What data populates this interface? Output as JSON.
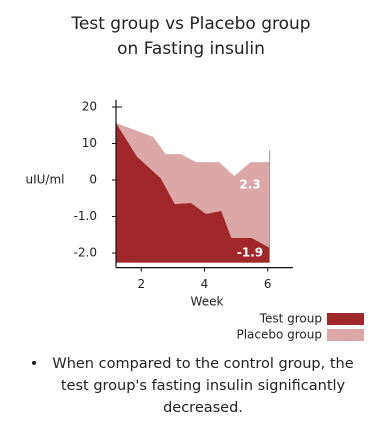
{
  "chart_data": {
    "type": "area",
    "title": [
      "Test group vs Placebo group",
      "on Fasting insulin"
    ],
    "xlabel": "Week",
    "ylabel": "uIU/ml",
    "xlim": [
      1.2,
      6.8
    ],
    "xticks": [
      2,
      4,
      6
    ],
    "ylim": [
      -2.4,
      22
    ],
    "yticks": [
      20,
      10,
      0,
      {
        "value": -1,
        "label": "-1.0"
      },
      {
        "value": -2,
        "label": "-2.0"
      }
    ],
    "series": [
      {
        "name": "Placebo group",
        "color": "#dca7a7",
        "x": [
          1.2,
          2.38,
          2.77,
          3.25,
          3.73,
          4.46,
          4.94,
          5.46,
          6.06
        ],
        "values": [
          15.6,
          11.8,
          7.1,
          7.1,
          4.9,
          4.9,
          1.1,
          4.9,
          4.9
        ]
      },
      {
        "name": "Test group",
        "color": "#a0282b",
        "x": [
          1.2,
          1.87,
          2.61,
          3.06,
          3.57,
          4.05,
          4.53,
          4.85,
          5.49,
          6.06
        ],
        "values": [
          15.6,
          6.3,
          0.5,
          -0.66,
          -0.63,
          -0.93,
          -0.85,
          -1.59,
          -1.59,
          -1.86
        ]
      }
    ],
    "annotations": [
      "2.3",
      "-1.9"
    ],
    "legend": "bottom-right",
    "note": [
      "When compared to the control group, the",
      "test group's fasting insulin significantly",
      "decreased."
    ]
  }
}
